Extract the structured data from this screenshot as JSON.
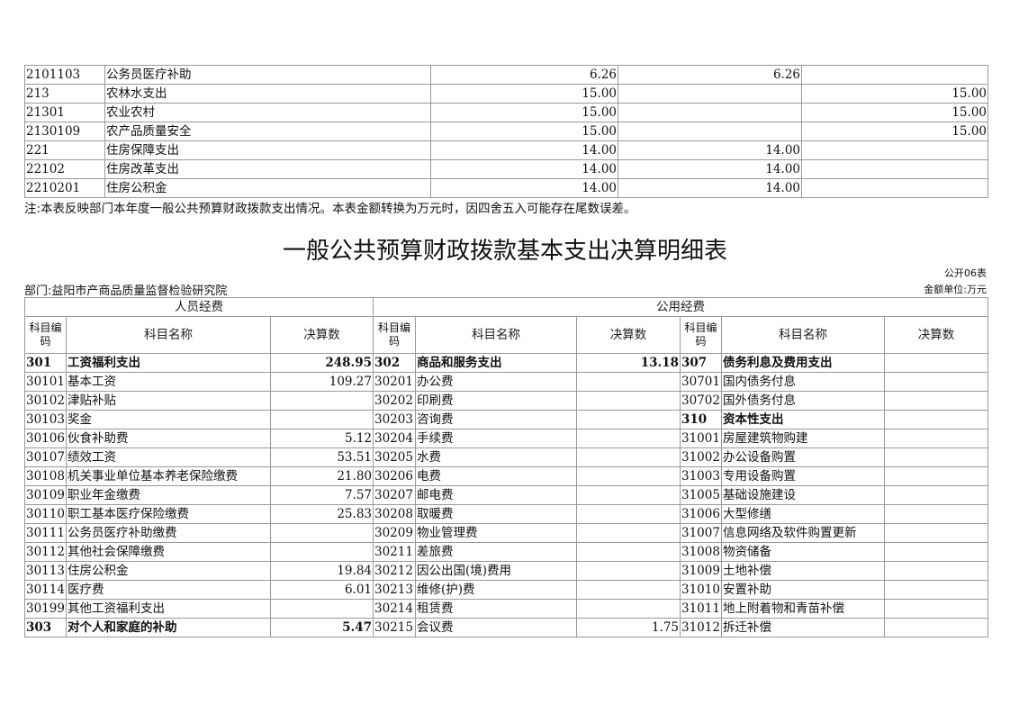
{
  "top_table": {
    "rows": [
      {
        "code": "2101103",
        "name": "公务员医疗补助",
        "total": "6.26",
        "basic": "6.26",
        "project": "",
        "bold": false
      },
      {
        "code": "213",
        "name": "农林水支出",
        "total": "15.00",
        "basic": "",
        "project": "15.00",
        "bold": false
      },
      {
        "code": "21301",
        "name": "农业农村",
        "total": "15.00",
        "basic": "",
        "project": "15.00",
        "bold": false
      },
      {
        "code": "2130109",
        "name": "农产品质量安全",
        "total": "15.00",
        "basic": "",
        "project": "15.00",
        "bold": false
      },
      {
        "code": "221",
        "name": "住房保障支出",
        "total": "14.00",
        "basic": "14.00",
        "project": "",
        "bold": false
      },
      {
        "code": "22102",
        "name": "住房改革支出",
        "total": "14.00",
        "basic": "14.00",
        "project": "",
        "bold": false
      },
      {
        "code": "2210201",
        "name": "住房公积金",
        "total": "14.00",
        "basic": "14.00",
        "project": "",
        "bold": false
      }
    ]
  },
  "note": "注:本表反映部门本年度一般公共预算财政拨款支出情况。本表金额转换为万元时，因四舍五入可能存在尾数误差。",
  "title": "一般公共预算财政拨款基本支出决算明细表",
  "form_code": "公开06表",
  "department": "部门:益阳市产商品质量监督检验研究院",
  "unit": "金额单位:万元",
  "detail_table": {
    "group_headers": [
      "人员经费",
      "公用经费"
    ],
    "col_headers": [
      "科目编码",
      "科目名称",
      "决算数"
    ],
    "rows": [
      [
        {
          "c": "301",
          "n": "工资福利支出",
          "v": "248.95",
          "b": true
        },
        {
          "c": "302",
          "n": "商品和服务支出",
          "v": "13.18",
          "b": true
        },
        {
          "c": "307",
          "n": "债务利息及费用支出",
          "v": "",
          "b": true
        }
      ],
      [
        {
          "c": "30101",
          "n": "基本工资",
          "v": "109.27"
        },
        {
          "c": "30201",
          "n": "办公费",
          "v": ""
        },
        {
          "c": "30701",
          "n": "国内债务付息",
          "v": ""
        }
      ],
      [
        {
          "c": "30102",
          "n": "津贴补贴",
          "v": ""
        },
        {
          "c": "30202",
          "n": "印刷费",
          "v": ""
        },
        {
          "c": "30702",
          "n": "国外债务付息",
          "v": ""
        }
      ],
      [
        {
          "c": "30103",
          "n": "奖金",
          "v": ""
        },
        {
          "c": "30203",
          "n": "咨询费",
          "v": ""
        },
        {
          "c": "310",
          "n": "资本性支出",
          "v": "",
          "b": true
        }
      ],
      [
        {
          "c": "30106",
          "n": "伙食补助费",
          "v": "5.12"
        },
        {
          "c": "30204",
          "n": "手续费",
          "v": ""
        },
        {
          "c": "31001",
          "n": "房屋建筑物购建",
          "v": ""
        }
      ],
      [
        {
          "c": "30107",
          "n": "绩效工资",
          "v": "53.51"
        },
        {
          "c": "30205",
          "n": "水费",
          "v": ""
        },
        {
          "c": "31002",
          "n": "办公设备购置",
          "v": ""
        }
      ],
      [
        {
          "c": "30108",
          "n": "机关事业单位基本养老保险缴费",
          "v": "21.80"
        },
        {
          "c": "30206",
          "n": "电费",
          "v": ""
        },
        {
          "c": "31003",
          "n": "专用设备购置",
          "v": ""
        }
      ],
      [
        {
          "c": "30109",
          "n": "职业年金缴费",
          "v": "7.57"
        },
        {
          "c": "30207",
          "n": "邮电费",
          "v": ""
        },
        {
          "c": "31005",
          "n": "基础设施建设",
          "v": ""
        }
      ],
      [
        {
          "c": "30110",
          "n": "职工基本医疗保险缴费",
          "v": "25.83"
        },
        {
          "c": "30208",
          "n": "取暖费",
          "v": ""
        },
        {
          "c": "31006",
          "n": "大型修缮",
          "v": ""
        }
      ],
      [
        {
          "c": "30111",
          "n": "公务员医疗补助缴费",
          "v": ""
        },
        {
          "c": "30209",
          "n": "物业管理费",
          "v": ""
        },
        {
          "c": "31007",
          "n": "信息网络及软件购置更新",
          "v": ""
        }
      ],
      [
        {
          "c": "30112",
          "n": "其他社会保障缴费",
          "v": ""
        },
        {
          "c": "30211",
          "n": "差旅费",
          "v": ""
        },
        {
          "c": "31008",
          "n": "物资储备",
          "v": ""
        }
      ],
      [
        {
          "c": "30113",
          "n": "住房公积金",
          "v": "19.84"
        },
        {
          "c": "30212",
          "n": "因公出国(境)费用",
          "v": ""
        },
        {
          "c": "31009",
          "n": "土地补偿",
          "v": ""
        }
      ],
      [
        {
          "c": "30114",
          "n": "医疗费",
          "v": "6.01"
        },
        {
          "c": "30213",
          "n": "维修(护)费",
          "v": ""
        },
        {
          "c": "31010",
          "n": "安置补助",
          "v": ""
        }
      ],
      [
        {
          "c": "30199",
          "n": "其他工资福利支出",
          "v": ""
        },
        {
          "c": "30214",
          "n": "租赁费",
          "v": ""
        },
        {
          "c": "31011",
          "n": "地上附着物和青苗补偿",
          "v": ""
        }
      ],
      [
        {
          "c": "303",
          "n": "对个人和家庭的补助",
          "v": "5.47",
          "b": true
        },
        {
          "c": "30215",
          "n": "会议费",
          "v": "1.75"
        },
        {
          "c": "31012",
          "n": "拆迁补偿",
          "v": ""
        }
      ]
    ]
  }
}
